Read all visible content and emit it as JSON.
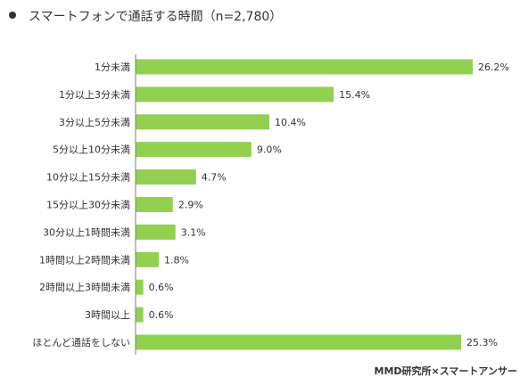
{
  "title": "スマートフォンで通話する時間（n=2,780）",
  "source": "MMD研究所×スマートアンサー",
  "colors": {
    "bar": "#92D050",
    "axis": "#7f7f7f",
    "text": "#333333"
  },
  "chart_data": {
    "type": "bar",
    "orientation": "horizontal",
    "title": "スマートフォンで通話する時間（n=2,780）",
    "categories": [
      "1分未満",
      "1分以上3分未満",
      "3分以上5分未満",
      "5分以上10分未満",
      "10分以上15分未満",
      "15分以上30分未満",
      "30分以上1時間未満",
      "1時間以上2時間未満",
      "2時間以上3時間未満",
      "3時間以上",
      "ほとんど通話をしない"
    ],
    "values": [
      26.2,
      15.4,
      10.4,
      9.0,
      4.7,
      2.9,
      3.1,
      1.8,
      0.6,
      0.6,
      25.3
    ],
    "value_labels": [
      "26.2%",
      "15.4%",
      "10.4%",
      "9.0%",
      "4.7%",
      "2.9%",
      "3.1%",
      "1.8%",
      "0.6%",
      "0.6%",
      "25.3%"
    ],
    "unit": "%",
    "xlim": [
      0,
      26.2
    ],
    "grid": false,
    "legend": false
  }
}
